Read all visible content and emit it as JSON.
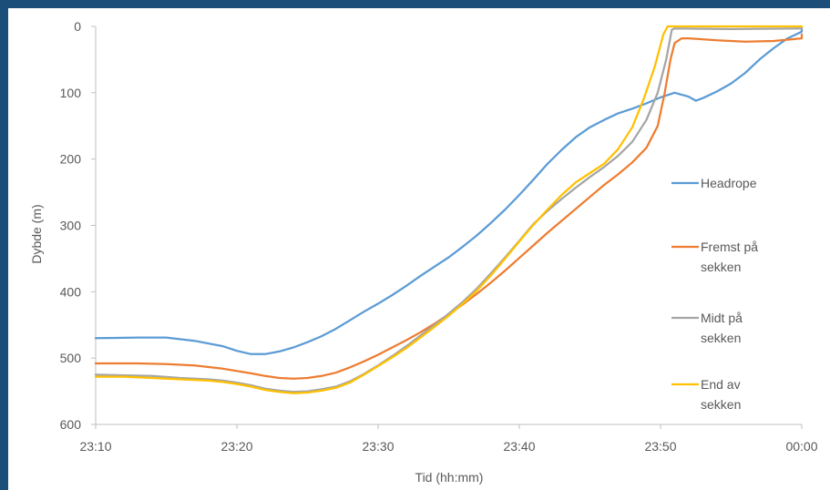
{
  "chart_data": {
    "type": "line",
    "title": "",
    "xlabel": "Tid (hh:mm)",
    "ylabel": "Dybde (m)",
    "x_ticks": [
      "23:10",
      "23:20",
      "23:30",
      "23:40",
      "23:50",
      "00:00"
    ],
    "y_ticks": [
      "0",
      "100",
      "200",
      "300",
      "400",
      "500",
      "600"
    ],
    "xlim_minutes": [
      0,
      50
    ],
    "ylim": [
      0,
      600
    ],
    "y_inverted": true,
    "grid": false,
    "legend_position": "right",
    "series": [
      {
        "name": "Headrope",
        "legend_lines": [
          "Headrope"
        ],
        "color": "#5b9bd5",
        "points": [
          [
            0,
            470
          ],
          [
            3,
            469
          ],
          [
            5,
            469
          ],
          [
            7,
            474
          ],
          [
            9,
            482
          ],
          [
            10,
            489
          ],
          [
            11,
            494
          ],
          [
            12,
            494
          ],
          [
            13,
            490
          ],
          [
            14,
            484
          ],
          [
            15,
            476
          ],
          [
            16,
            467
          ],
          [
            17,
            456
          ],
          [
            18,
            443
          ],
          [
            19,
            430
          ],
          [
            20,
            418
          ],
          [
            21,
            405
          ],
          [
            22,
            391
          ],
          [
            23,
            376
          ],
          [
            24,
            362
          ],
          [
            25,
            348
          ],
          [
            26,
            332
          ],
          [
            27,
            315
          ],
          [
            28,
            296
          ],
          [
            29,
            276
          ],
          [
            30,
            254
          ],
          [
            31,
            231
          ],
          [
            32,
            207
          ],
          [
            33,
            186
          ],
          [
            34,
            167
          ],
          [
            35,
            152
          ],
          [
            36,
            141
          ],
          [
            37,
            131
          ],
          [
            38,
            124
          ],
          [
            39,
            116
          ],
          [
            40,
            107
          ],
          [
            41,
            100
          ],
          [
            42,
            106
          ],
          [
            42.5,
            112
          ],
          [
            43,
            108
          ],
          [
            44,
            98
          ],
          [
            45,
            86
          ],
          [
            46,
            70
          ],
          [
            47,
            50
          ],
          [
            48,
            33
          ],
          [
            49,
            18
          ],
          [
            50,
            8
          ],
          [
            51,
            3
          ],
          [
            52,
            1
          ],
          [
            53,
            3
          ],
          [
            55,
            5
          ]
        ]
      },
      {
        "name": "Fremst på sekken",
        "legend_lines": [
          "Fremst på",
          "sekken"
        ],
        "color": "#ed7d31",
        "points": [
          [
            0,
            508
          ],
          [
            3,
            508
          ],
          [
            5,
            509
          ],
          [
            7,
            511
          ],
          [
            9,
            516
          ],
          [
            11,
            523
          ],
          [
            12,
            527
          ],
          [
            13,
            530
          ],
          [
            14,
            531
          ],
          [
            15,
            530
          ],
          [
            16,
            527
          ],
          [
            17,
            522
          ],
          [
            18,
            514
          ],
          [
            19,
            505
          ],
          [
            20,
            495
          ],
          [
            21,
            484
          ],
          [
            22,
            473
          ],
          [
            23,
            461
          ],
          [
            24,
            448
          ],
          [
            25,
            434
          ],
          [
            26,
            419
          ],
          [
            27,
            403
          ],
          [
            28,
            386
          ],
          [
            29,
            368
          ],
          [
            30,
            349
          ],
          [
            31,
            330
          ],
          [
            32,
            311
          ],
          [
            33,
            293
          ],
          [
            34,
            275
          ],
          [
            35,
            257
          ],
          [
            36,
            239
          ],
          [
            37,
            223
          ],
          [
            38,
            205
          ],
          [
            39,
            183
          ],
          [
            39.8,
            150
          ],
          [
            40.3,
            100
          ],
          [
            40.7,
            50
          ],
          [
            41,
            25
          ],
          [
            41.5,
            18
          ],
          [
            42,
            18
          ],
          [
            44,
            21
          ],
          [
            46,
            23
          ],
          [
            48,
            22
          ],
          [
            50,
            18
          ],
          [
            52,
            13
          ],
          [
            55,
            12
          ]
        ]
      },
      {
        "name": "Midt på sekken",
        "legend_lines": [
          "Midt på",
          "sekken"
        ],
        "color": "#a5a5a5",
        "points": [
          [
            0,
            525
          ],
          [
            2,
            526
          ],
          [
            4,
            527
          ],
          [
            6,
            530
          ],
          [
            8,
            532
          ],
          [
            9,
            534
          ],
          [
            10,
            537
          ],
          [
            11,
            541
          ],
          [
            12,
            546
          ],
          [
            13,
            549
          ],
          [
            14,
            551
          ],
          [
            15,
            550
          ],
          [
            16,
            547
          ],
          [
            17,
            543
          ],
          [
            18,
            535
          ],
          [
            19,
            524
          ],
          [
            20,
            511
          ],
          [
            21,
            497
          ],
          [
            22,
            482
          ],
          [
            23,
            466
          ],
          [
            24,
            450
          ],
          [
            25,
            433
          ],
          [
            26,
            415
          ],
          [
            27,
            395
          ],
          [
            28,
            372
          ],
          [
            29,
            348
          ],
          [
            30,
            323
          ],
          [
            31,
            298
          ],
          [
            32,
            278
          ],
          [
            33,
            260
          ],
          [
            34,
            243
          ],
          [
            35,
            227
          ],
          [
            36,
            212
          ],
          [
            37,
            195
          ],
          [
            38,
            174
          ],
          [
            39,
            141
          ],
          [
            39.8,
            100
          ],
          [
            40.4,
            50
          ],
          [
            40.8,
            5
          ],
          [
            41,
            3
          ],
          [
            45,
            4
          ],
          [
            50,
            3
          ],
          [
            55,
            3
          ]
        ]
      },
      {
        "name": "End av sekken",
        "legend_lines": [
          "End av",
          "sekken"
        ],
        "color": "#ffc000",
        "points": [
          [
            0,
            528
          ],
          [
            2,
            528
          ],
          [
            4,
            530
          ],
          [
            6,
            532
          ],
          [
            8,
            534
          ],
          [
            9,
            536
          ],
          [
            10,
            539
          ],
          [
            11,
            543
          ],
          [
            12,
            548
          ],
          [
            13,
            551
          ],
          [
            14,
            553
          ],
          [
            15,
            552
          ],
          [
            16,
            549
          ],
          [
            17,
            545
          ],
          [
            18,
            537
          ],
          [
            19,
            525
          ],
          [
            20,
            512
          ],
          [
            21,
            499
          ],
          [
            22,
            485
          ],
          [
            23,
            469
          ],
          [
            24,
            453
          ],
          [
            25,
            436
          ],
          [
            26,
            418
          ],
          [
            27,
            398
          ],
          [
            28,
            375
          ],
          [
            29,
            350
          ],
          [
            30,
            324
          ],
          [
            31,
            299
          ],
          [
            32,
            276
          ],
          [
            33,
            254
          ],
          [
            34,
            235
          ],
          [
            35,
            221
          ],
          [
            36,
            207
          ],
          [
            37,
            185
          ],
          [
            38,
            152
          ],
          [
            38.8,
            110
          ],
          [
            39.6,
            60
          ],
          [
            40.2,
            12
          ],
          [
            40.5,
            0
          ],
          [
            45,
            0
          ],
          [
            50,
            0
          ],
          [
            55,
            0
          ]
        ]
      }
    ]
  }
}
